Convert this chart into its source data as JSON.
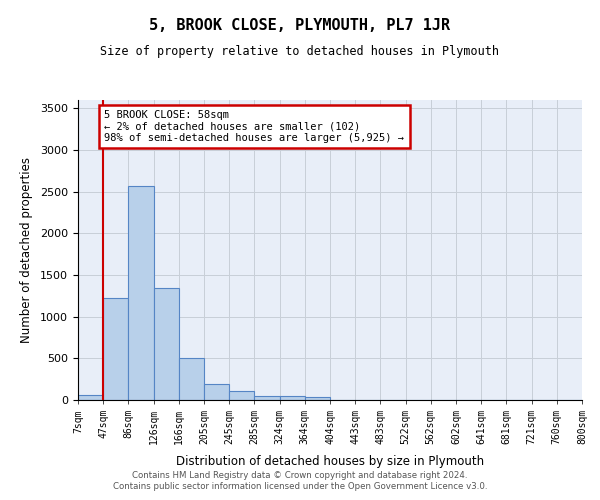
{
  "title": "5, BROOK CLOSE, PLYMOUTH, PL7 1JR",
  "subtitle": "Size of property relative to detached houses in Plymouth",
  "xlabel": "Distribution of detached houses by size in Plymouth",
  "ylabel": "Number of detached properties",
  "bar_values": [
    55,
    1230,
    2570,
    1340,
    500,
    195,
    105,
    50,
    45,
    35,
    0,
    0,
    0,
    0,
    0,
    0,
    0,
    0,
    0,
    0
  ],
  "bar_labels": [
    "7sqm",
    "47sqm",
    "86sqm",
    "126sqm",
    "166sqm",
    "205sqm",
    "245sqm",
    "285sqm",
    "324sqm",
    "364sqm",
    "404sqm",
    "443sqm",
    "483sqm",
    "522sqm",
    "562sqm",
    "602sqm",
    "641sqm",
    "681sqm",
    "721sqm",
    "760sqm",
    "800sqm"
  ],
  "bar_color": "#b8d0ea",
  "bar_edgecolor": "#5585c5",
  "grid_color": "#c8cfd8",
  "background_color": "#e8eef8",
  "annotation_text": "5 BROOK CLOSE: 58sqm\n← 2% of detached houses are smaller (102)\n98% of semi-detached houses are larger (5,925) →",
  "annotation_box_facecolor": "#ffffff",
  "annotation_box_edgecolor": "#cc0000",
  "vline_x": 1,
  "vline_color": "#cc0000",
  "ylim": [
    0,
    3600
  ],
  "yticks": [
    0,
    500,
    1000,
    1500,
    2000,
    2500,
    3000,
    3500
  ],
  "footer_line1": "Contains HM Land Registry data © Crown copyright and database right 2024.",
  "footer_line2": "Contains public sector information licensed under the Open Government Licence v3.0."
}
